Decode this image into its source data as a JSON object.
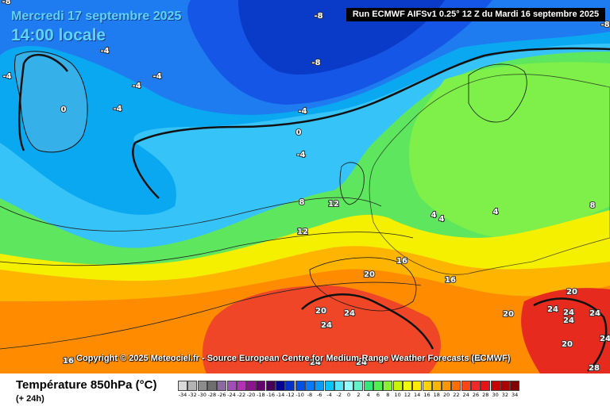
{
  "header": {
    "date": "Mercredi 17 septembre 2025",
    "time": "14:00 locale",
    "run": "Run ECMWF AIFSv1 0.25° 12 Z du Mardi 16 septembre 2025"
  },
  "copyright": "Copyright © 2025 Meteociel.fr - Source European Centre for Medium-Range Weather Forecasts (ECMWF)",
  "footer": {
    "parameter": "Température 850hPa (°C)",
    "offset": "(+ 24h)"
  },
  "legend": {
    "values": [
      "-34",
      "-32",
      "-30",
      "-28",
      "-26",
      "-24",
      "-22",
      "-20",
      "-18",
      "-16",
      "-14",
      "-12",
      "-10",
      "-8",
      "-6",
      "-4",
      "-2",
      "0",
      "2",
      "4",
      "6",
      "8",
      "10",
      "12",
      "14",
      "16",
      "18",
      "20",
      "22",
      "24",
      "26",
      "28",
      "30",
      "32",
      "34"
    ],
    "colors": [
      "#d9d9d9",
      "#b4b4b4",
      "#8c8c8c",
      "#6e6e6e",
      "#8c6aa0",
      "#a050b4",
      "#b430b4",
      "#8c148c",
      "#64006e",
      "#46005a",
      "#000096",
      "#0032c8",
      "#0050e6",
      "#0a78ff",
      "#0a9bff",
      "#00c3ff",
      "#50e6ff",
      "#96ffff",
      "#64f0c8",
      "#32e678",
      "#50f050",
      "#8cf032",
      "#c8f500",
      "#f0ff00",
      "#ffeb00",
      "#ffd200",
      "#ffb400",
      "#ff9600",
      "#ff6e00",
      "#ff4614",
      "#f02828",
      "#e61414",
      "#c80000",
      "#aa0000",
      "#820000"
    ]
  },
  "map_labels": [
    {
      "text": "-8"
    },
    {
      "text": "-4"
    },
    {
      "text": "-4"
    },
    {
      "text": "0"
    },
    {
      "text": "-4"
    },
    {
      "text": "-4"
    },
    {
      "text": "-4"
    },
    {
      "text": "-8"
    },
    {
      "text": "-8"
    },
    {
      "text": "-4"
    },
    {
      "text": "0"
    },
    {
      "text": "-4"
    },
    {
      "text": "-8"
    },
    {
      "text": "8"
    },
    {
      "text": "12"
    },
    {
      "text": "12"
    },
    {
      "text": "4"
    },
    {
      "text": "4"
    },
    {
      "text": "4"
    },
    {
      "text": "8"
    },
    {
      "text": "16"
    },
    {
      "text": "20"
    },
    {
      "text": "16"
    },
    {
      "text": "20"
    },
    {
      "text": "24"
    },
    {
      "text": "24"
    },
    {
      "text": "24"
    },
    {
      "text": "24"
    },
    {
      "text": "20"
    },
    {
      "text": "20"
    },
    {
      "text": "24"
    },
    {
      "text": "24"
    },
    {
      "text": "24"
    },
    {
      "text": "24"
    },
    {
      "text": "20"
    },
    {
      "text": "28"
    },
    {
      "text": "24"
    },
    {
      "text": "16"
    },
    {
      "text": "24"
    },
    {
      "text": "20"
    },
    {
      "text": "24"
    },
    {
      "text": "24"
    },
    {
      "text": "20"
    }
  ]
}
